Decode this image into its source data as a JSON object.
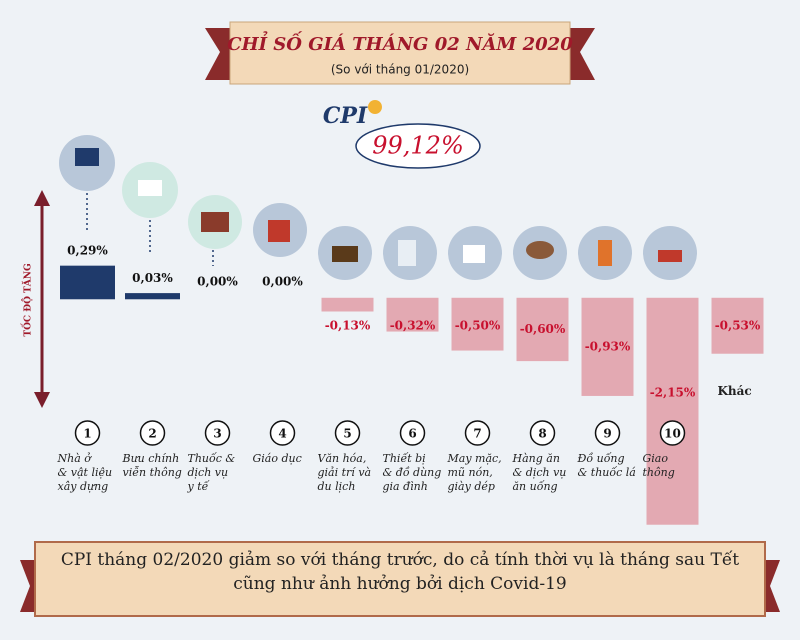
{
  "chart_data": {
    "type": "bar",
    "title": "CHỈ SỐ GIÁ THÁNG 02 NĂM 2020",
    "subtitle": "(So với tháng 01/2020)",
    "cpi_label": "CPI",
    "cpi_value": "99,12%",
    "y_label": "TỐC ĐỘ TĂNG",
    "numbers": [
      "1",
      "2",
      "3",
      "4",
      "5",
      "6",
      "7",
      "8",
      "9",
      "10"
    ],
    "categories": [
      "Nhà ở\n& vật liệu\nxây dựng",
      "Bưu chính\nviễn thông",
      "Thuốc &\ndịch vụ\ny tế",
      "Giáo dục",
      "Văn hóa,\ngiải trí và\ndu lịch",
      "Thiết bị\n& đồ dùng\ngia đình",
      "May mặc,\nmũ nón,\ngiày dép",
      "Hàng ăn\n& dịch vụ\năn uống",
      "Đồ uống\n& thuốc lá",
      "Giao\nthông",
      "Khác"
    ],
    "values": [
      0.29,
      0.03,
      0.0,
      0.0,
      -0.13,
      -0.32,
      -0.5,
      -0.6,
      -0.93,
      -2.15,
      -0.53
    ],
    "value_labels": [
      "0,29%",
      "0,03%",
      "0,00%",
      "0,00%",
      "-0,13%",
      "-0,32%",
      "-0,50%",
      "-0,60%",
      "-0,93%",
      "-2,15%",
      "-0,53%"
    ],
    "positive_color": "#1f3a6b",
    "negative_color": "#e3a9b2",
    "ylim": [
      -2.2,
      0.5
    ],
    "footer": "CPI tháng 02/2020 giảm so với tháng trước, do cả tính thời vụ là tháng sau Tết\ncũng như ảnh hưởng bởi dịch Covid-19"
  }
}
